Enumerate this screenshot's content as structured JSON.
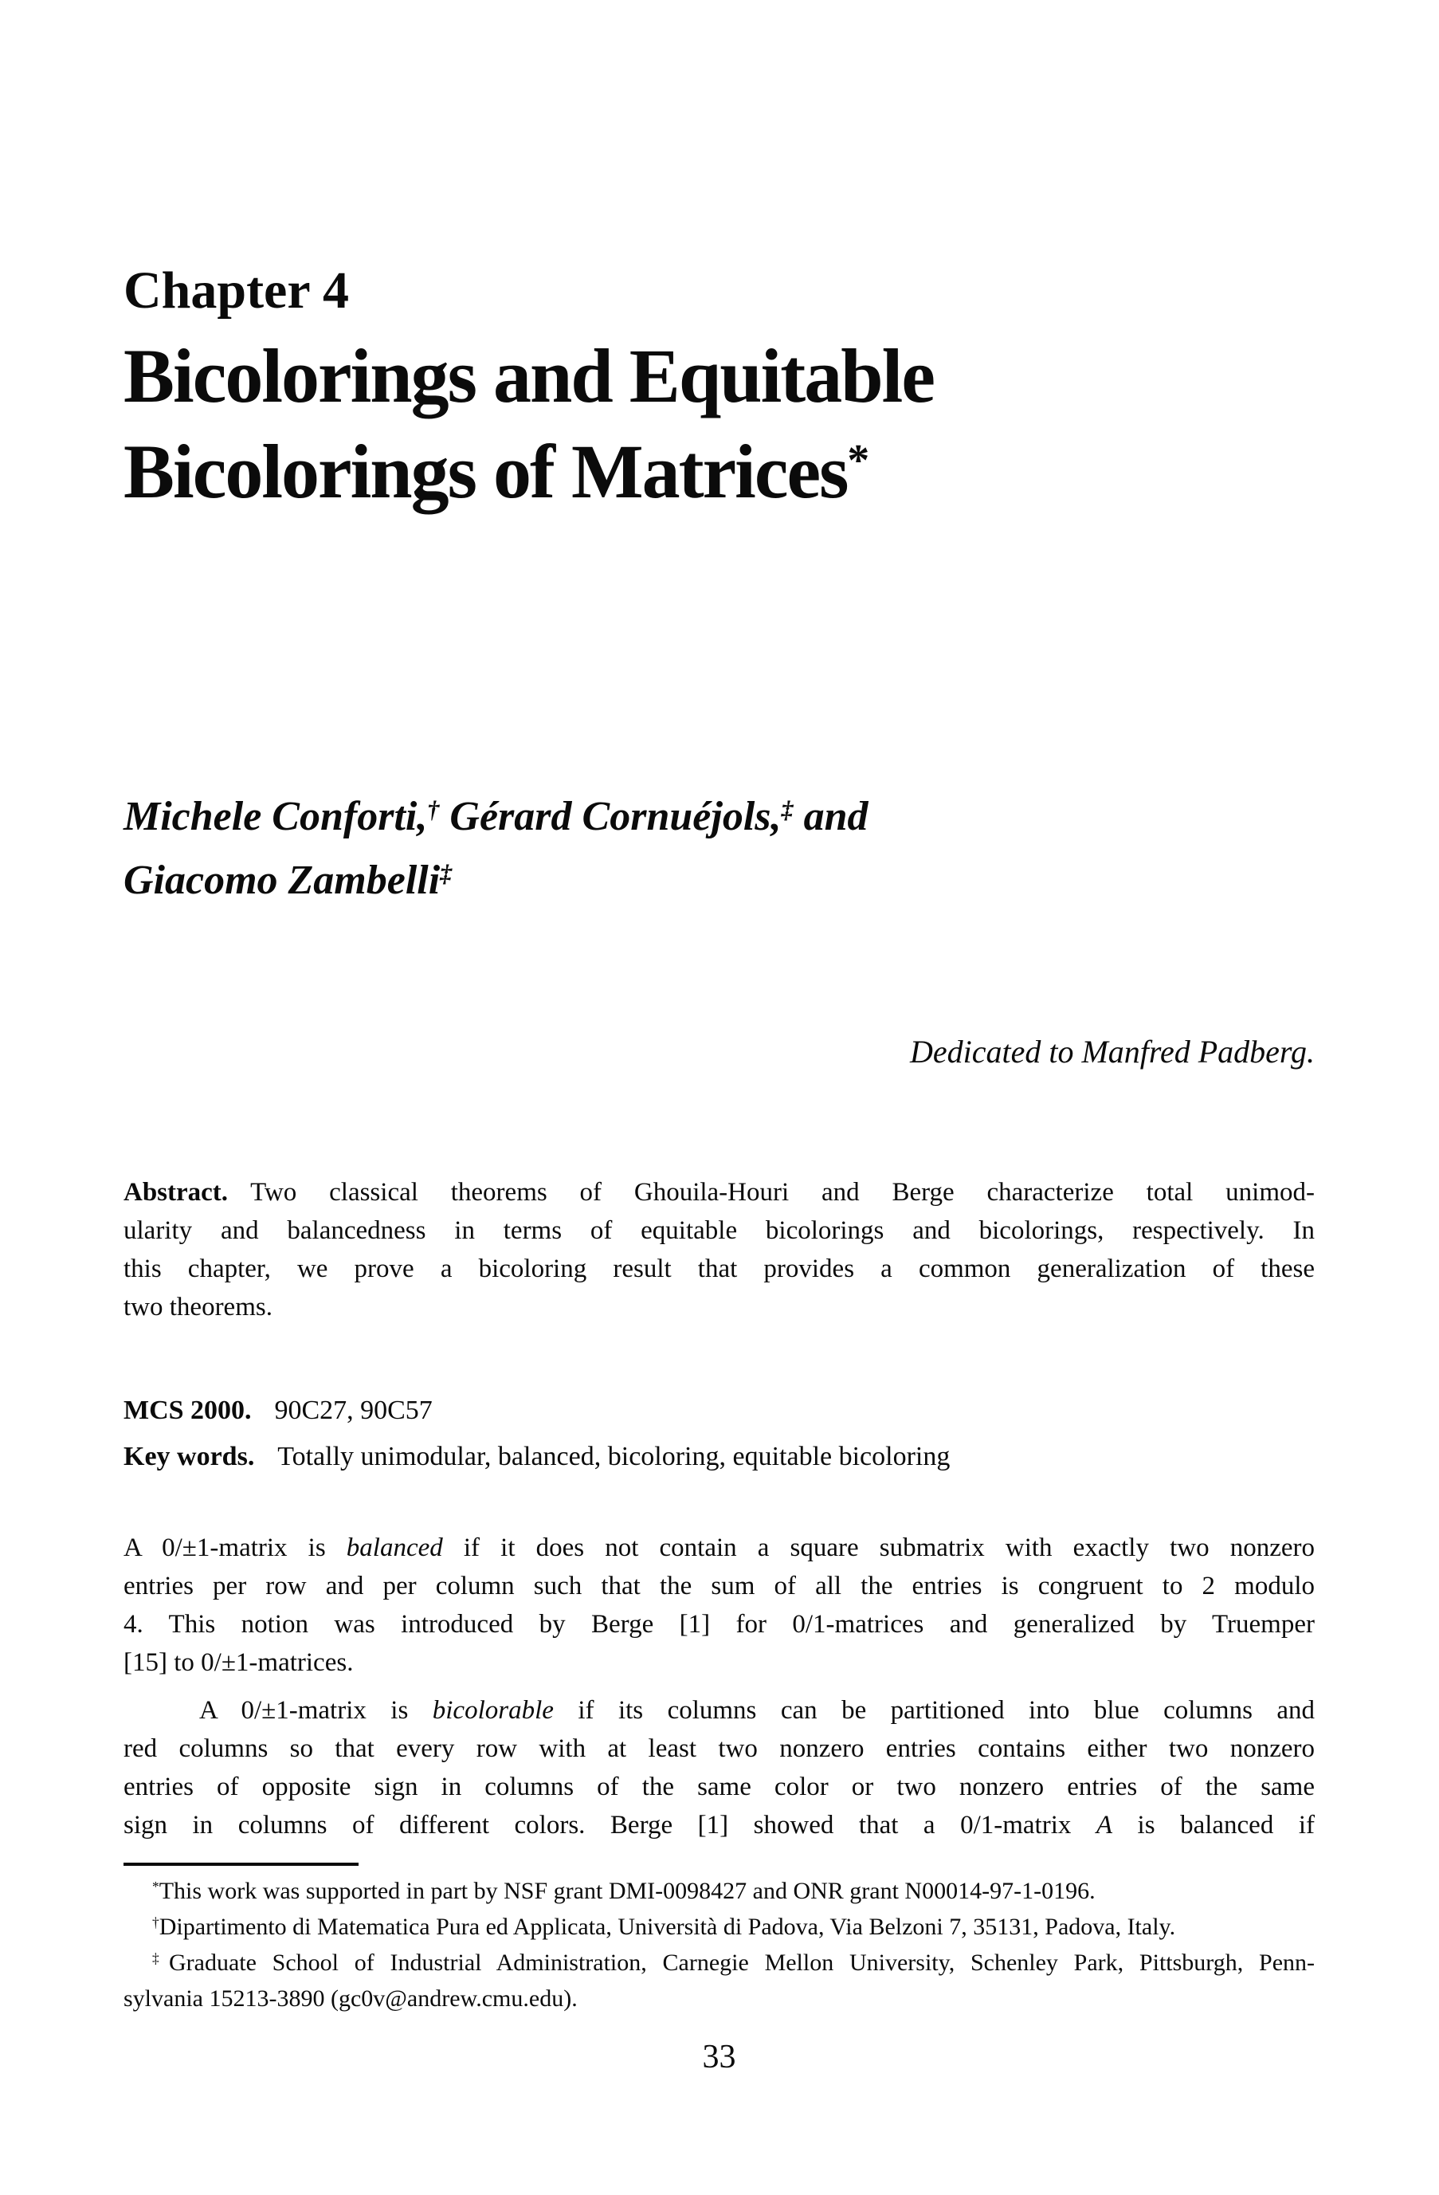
{
  "page": {
    "chapter_label": "Chapter 4",
    "page_number": "33",
    "title": {
      "lines": [
        {
          "seg": [
            {
              "t": "Bicolorings and Equitable"
            }
          ]
        },
        {
          "seg": [
            {
              "t": "Bicolorings of Matrices"
            },
            {
              "t": "*",
              "sup": true
            }
          ]
        }
      ]
    },
    "authors": {
      "lines": [
        {
          "seg": [
            {
              "t": "Michele Conforti,"
            },
            {
              "t": "†",
              "sup": true
            },
            {
              "t": " Gérard Cornuéjols,"
            },
            {
              "t": "‡",
              "sup": true
            },
            {
              "t": " and"
            }
          ]
        },
        {
          "seg": [
            {
              "t": "Giacomo Zambelli"
            },
            {
              "t": "‡",
              "sup": true
            }
          ]
        }
      ]
    },
    "dedication": "Dedicated to Manfred Padberg.",
    "abstract": {
      "lines": [
        {
          "j": true,
          "seg": [
            {
              "t": "Abstract.",
              "lbl": true
            },
            {
              "t": "Two classical theorems of Ghouila-Houri and Berge characterize total unimod-"
            }
          ]
        },
        {
          "j": true,
          "seg": [
            {
              "t": "ularity and balancedness in terms of equitable bicolorings and bicolorings, respectively. In"
            }
          ]
        },
        {
          "j": true,
          "seg": [
            {
              "t": "this chapter, we prove a bicoloring result that provides a common generalization of these"
            }
          ]
        },
        {
          "seg": [
            {
              "t": "two theorems."
            }
          ]
        }
      ]
    },
    "mcs": {
      "lines": [
        {
          "seg": [
            {
              "t": "MCS 2000.",
              "lbl": true
            },
            {
              "t": "90C27, 90C57"
            }
          ]
        }
      ]
    },
    "keywords": {
      "lines": [
        {
          "seg": [
            {
              "t": "Key words.",
              "lbl": true
            },
            {
              "t": "Totally unimodular, balanced, bicoloring, equitable bicoloring"
            }
          ]
        }
      ]
    },
    "paragraph1": {
      "lines": [
        {
          "j": true,
          "seg": [
            {
              "t": "A 0/±1-matrix is "
            },
            {
              "t": "balanced",
              "i": true
            },
            {
              "t": " if it does not contain a square submatrix with exactly two nonzero"
            }
          ]
        },
        {
          "j": true,
          "seg": [
            {
              "t": "entries per row and per column such that the sum of all the entries is congruent to 2 modulo"
            }
          ]
        },
        {
          "j": true,
          "seg": [
            {
              "t": "4. This notion was introduced by Berge [1] for 0/1-matrices and generalized by Truemper"
            }
          ]
        },
        {
          "seg": [
            {
              "t": "[15] to 0/±1-matrices."
            }
          ]
        }
      ]
    },
    "paragraph2": {
      "lines": [
        {
          "j": true,
          "ind": true,
          "seg": [
            {
              "t": "A 0/±1-matrix is "
            },
            {
              "t": "bicolorable",
              "i": true
            },
            {
              "t": " if its columns can be partitioned into blue columns and"
            }
          ]
        },
        {
          "j": true,
          "seg": [
            {
              "t": "red columns so that every row with at least two nonzero entries contains either two nonzero"
            }
          ]
        },
        {
          "j": true,
          "seg": [
            {
              "t": "entries of opposite sign in columns of the same color or two nonzero entries of the same"
            }
          ]
        },
        {
          "j": true,
          "seg": [
            {
              "t": "sign in columns of different colors. Berge [1] showed that a 0/1-matrix "
            },
            {
              "t": "A",
              "i": true
            },
            {
              "t": " is balanced if"
            }
          ]
        }
      ]
    },
    "footnotes": {
      "lines": [
        {
          "ind": true,
          "seg": [
            {
              "t": "*",
              "sup": true
            },
            {
              "t": "This work was supported in part by NSF grant DMI-0098427 and ONR grant N00014-97-1-0196."
            }
          ]
        },
        {
          "ind": true,
          "seg": [
            {
              "t": "†",
              "sup": true
            },
            {
              "t": "Dipartimento di Matematica Pura ed Applicata, Università di Padova, Via Belzoni 7, 35131, Padova, Italy."
            }
          ]
        },
        {
          "j": true,
          "ind": true,
          "seg": [
            {
              "t": "‡",
              "sup": true
            },
            {
              "t": "Graduate School of Industrial Administration, Carnegie Mellon University, Schenley Park, Pittsburgh, Penn-"
            }
          ]
        },
        {
          "seg": [
            {
              "t": "sylvania 15213-3890 (gc0v@andrew.cmu.edu)."
            }
          ]
        }
      ]
    }
  }
}
